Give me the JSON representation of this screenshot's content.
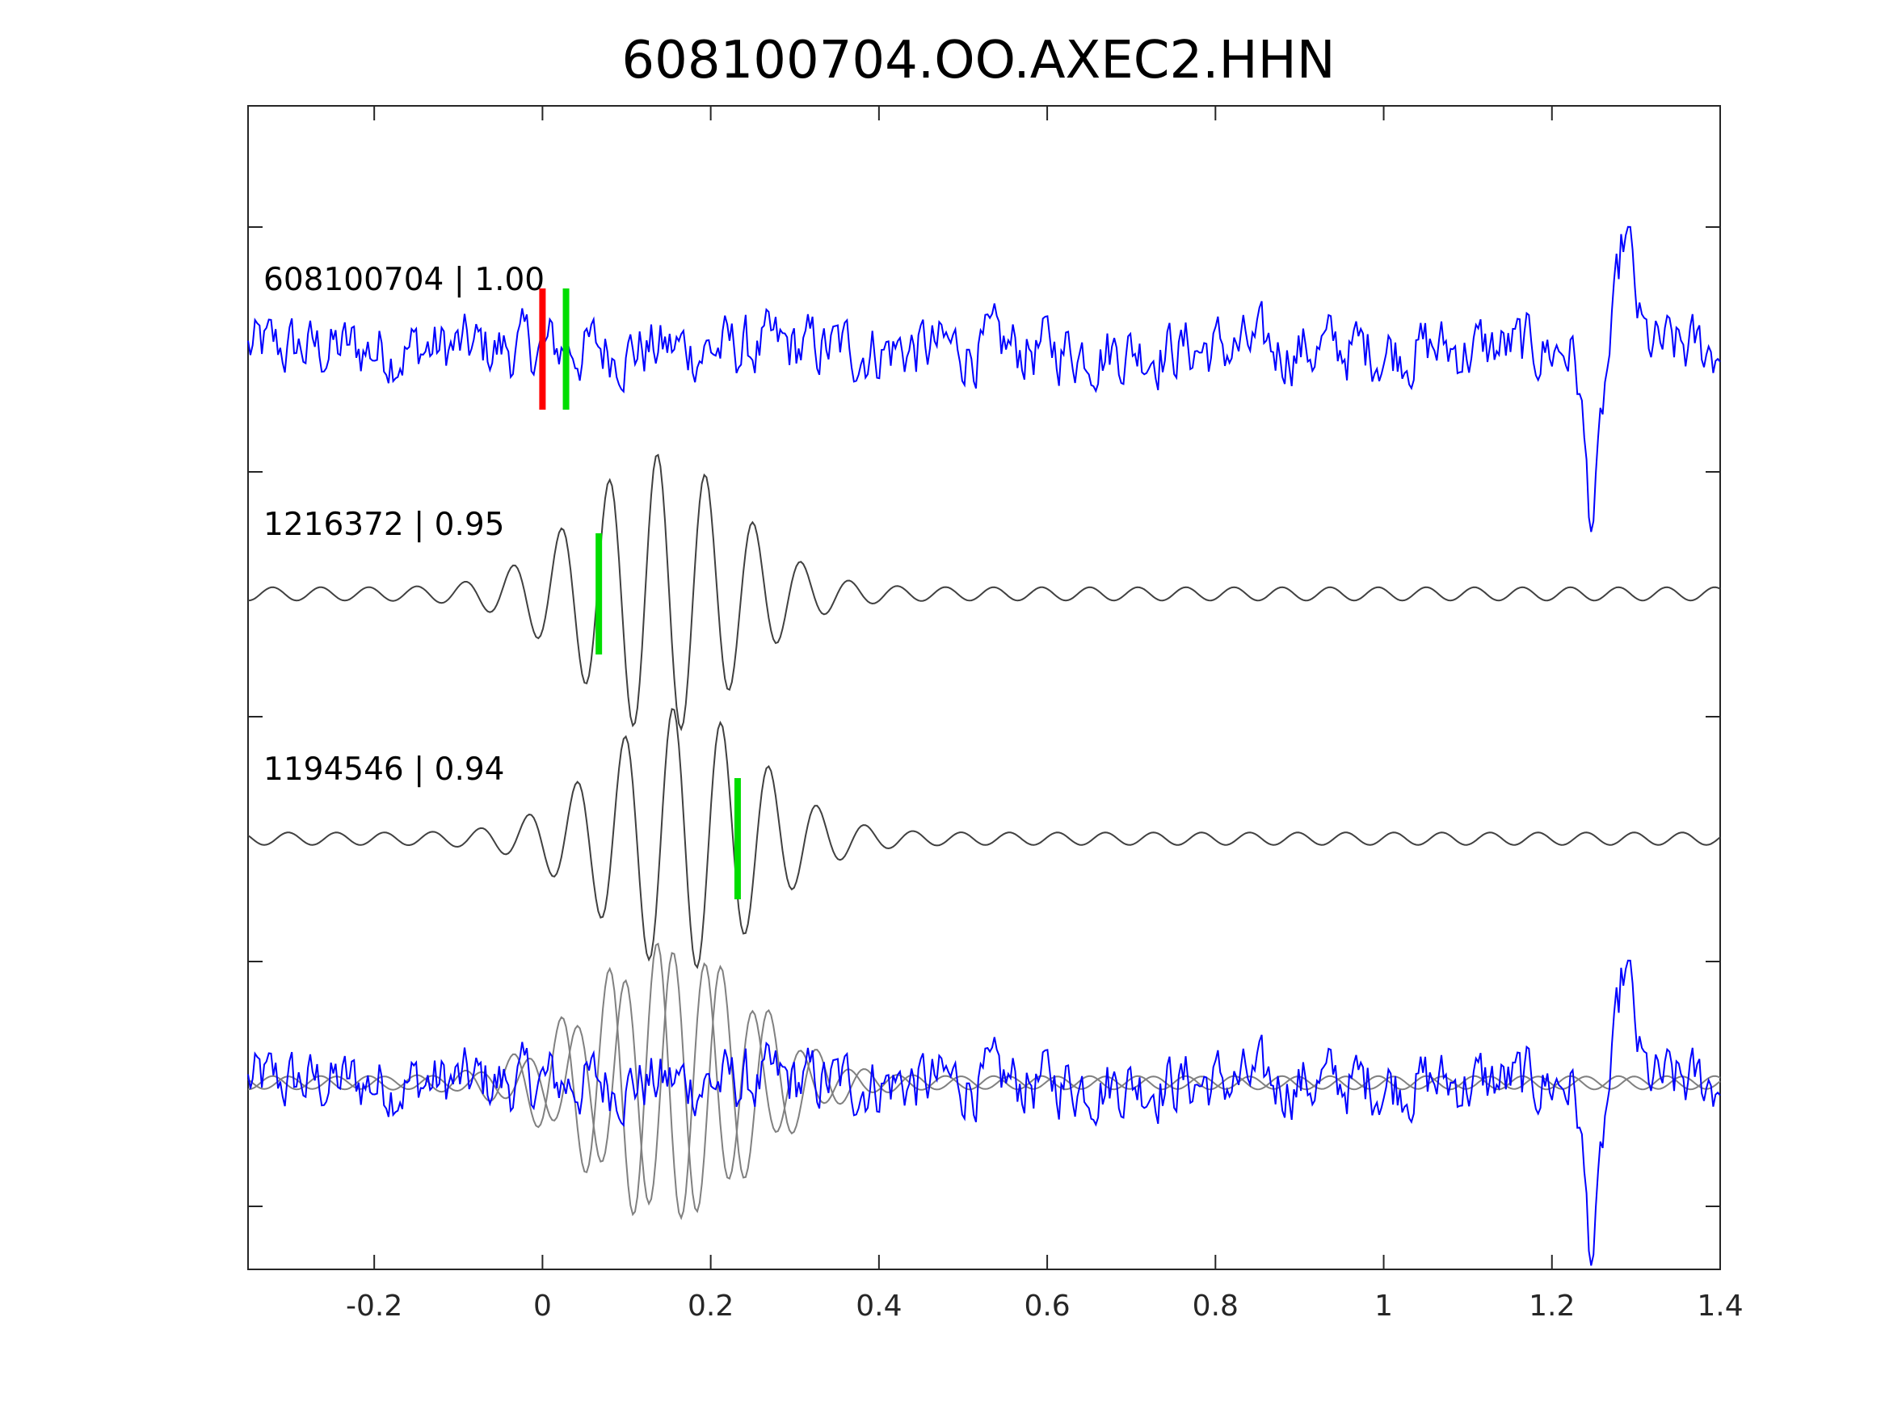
{
  "chart_data": {
    "type": "line",
    "title": "608100704.OO.AXEC2.HHN",
    "xlabel": "",
    "ylabel": "",
    "xlim": [
      -0.35,
      1.4
    ],
    "xticks": [
      -0.2,
      0,
      0.2,
      0.4,
      0.6,
      0.8,
      1,
      1.2,
      1.4
    ],
    "xtick_labels": [
      "-0.2",
      "0",
      "0.2",
      "0.4",
      "0.6",
      "0.8",
      "1",
      "1.2",
      "1.4"
    ],
    "y_tick_count": 10,
    "y_tick_labels_shown": false,
    "grid": false,
    "legend": "none",
    "traces": [
      {
        "label": "608100704 | 1.00",
        "color": "#0000ff",
        "kind": "noisy",
        "picks": [
          {
            "time": 0.0,
            "color": "#ff0000"
          },
          {
            "time": 0.028,
            "color": "#00dd00"
          }
        ]
      },
      {
        "label": "1216372 | 0.95",
        "color": "#404040",
        "kind": "wavetrain",
        "envelope_center": 0.14,
        "picks": [
          {
            "time": 0.067,
            "color": "#00dd00"
          }
        ]
      },
      {
        "label": "1194546 | 0.94",
        "color": "#404040",
        "kind": "wavetrain",
        "envelope_center": 0.165,
        "picks": [
          {
            "time": 0.232,
            "color": "#00dd00"
          }
        ]
      }
    ],
    "overlay": {
      "colors": [
        "#0000ff",
        "#808080",
        "#808080"
      ],
      "note_shown": ""
    }
  }
}
